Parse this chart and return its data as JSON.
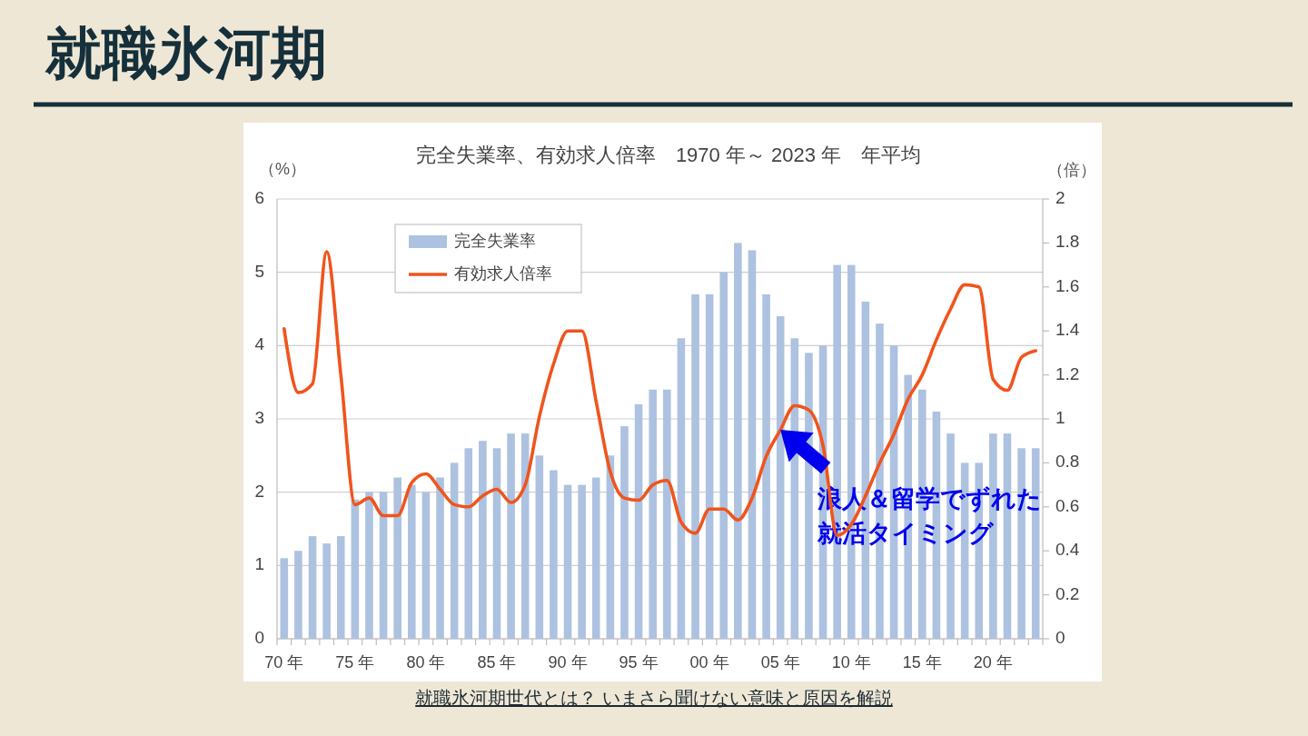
{
  "chart_data": {
    "type": "bar",
    "title": "就職氷河期",
    "subtitle": "完全失業率、有効求人倍率　1970 年～ 2023 年　年平均",
    "ylabel": "（%）",
    "y2label": "（倍）",
    "annotations": [
      {
        "text": "浪人＆留学でずれた",
        "x": "05 年",
        "y": 2.85
      },
      "就活タイミング",
      "就職氷河期世代とは？ いまさら聞けない意味と原因を解説"
    ],
    "categories": [
      "70 年",
      null,
      null,
      null,
      null,
      "75 年",
      null,
      null,
      null,
      null,
      "80 年",
      null,
      null,
      null,
      null,
      "85 年",
      null,
      null,
      null,
      null,
      "90 年",
      null,
      null,
      null,
      null,
      "95 年",
      null,
      null,
      null,
      null,
      "00 年",
      null,
      null,
      null,
      null,
      "05 年",
      null,
      null,
      null,
      null,
      "10 年",
      null,
      null,
      null,
      null,
      "15 年",
      null,
      null,
      null,
      null,
      "20 年",
      null,
      null,
      null
    ],
    "series": [
      {
        "name": "完全失業率",
        "type": "bar",
        "color": "#adc2e0",
        "values": [
          1.1,
          1.2,
          1.4,
          1.3,
          1.4,
          1.9,
          2.0,
          2.0,
          2.2,
          2.1,
          2.0,
          2.2,
          2.4,
          2.6,
          2.7,
          2.6,
          2.8,
          2.8,
          2.5,
          2.3,
          2.1,
          2.1,
          2.2,
          2.5,
          2.9,
          3.2,
          3.4,
          3.4,
          4.1,
          4.7,
          4.7,
          5.0,
          5.4,
          5.3,
          4.7,
          4.4,
          4.1,
          3.9,
          4.0,
          5.1,
          5.1,
          4.6,
          4.3,
          4.0,
          3.6,
          3.4,
          3.1,
          2.8,
          2.4,
          2.4,
          2.8,
          2.8,
          2.6,
          2.6
        ]
      },
      {
        "name": "有効求人倍率",
        "type": "line",
        "axis": "y2",
        "color": "#f0541c",
        "values": [
          1.41,
          1.12,
          1.16,
          1.76,
          1.2,
          0.61,
          0.64,
          0.56,
          0.56,
          0.71,
          0.75,
          0.68,
          0.61,
          0.6,
          0.65,
          0.68,
          0.62,
          0.7,
          1.01,
          1.25,
          1.4,
          1.4,
          1.08,
          0.76,
          0.64,
          0.63,
          0.7,
          0.72,
          0.53,
          0.48,
          0.59,
          0.59,
          0.54,
          0.64,
          0.83,
          0.95,
          1.06,
          1.04,
          0.88,
          0.47,
          0.52,
          0.65,
          0.8,
          0.93,
          1.09,
          1.2,
          1.36,
          1.5,
          1.61,
          1.6,
          1.18,
          1.13,
          1.28,
          1.31
        ]
      }
    ],
    "ylim": [
      0,
      6
    ],
    "yticks": [
      0,
      1,
      2,
      3,
      4,
      5,
      6
    ],
    "y2lim": [
      0,
      2
    ],
    "y2ticks": [
      0,
      0.2,
      0.4,
      0.6,
      0.8,
      1,
      1.2,
      1.4,
      1.6,
      1.8,
      2
    ],
    "grid": "y",
    "legend": "top left",
    "line_style": "solid"
  }
}
